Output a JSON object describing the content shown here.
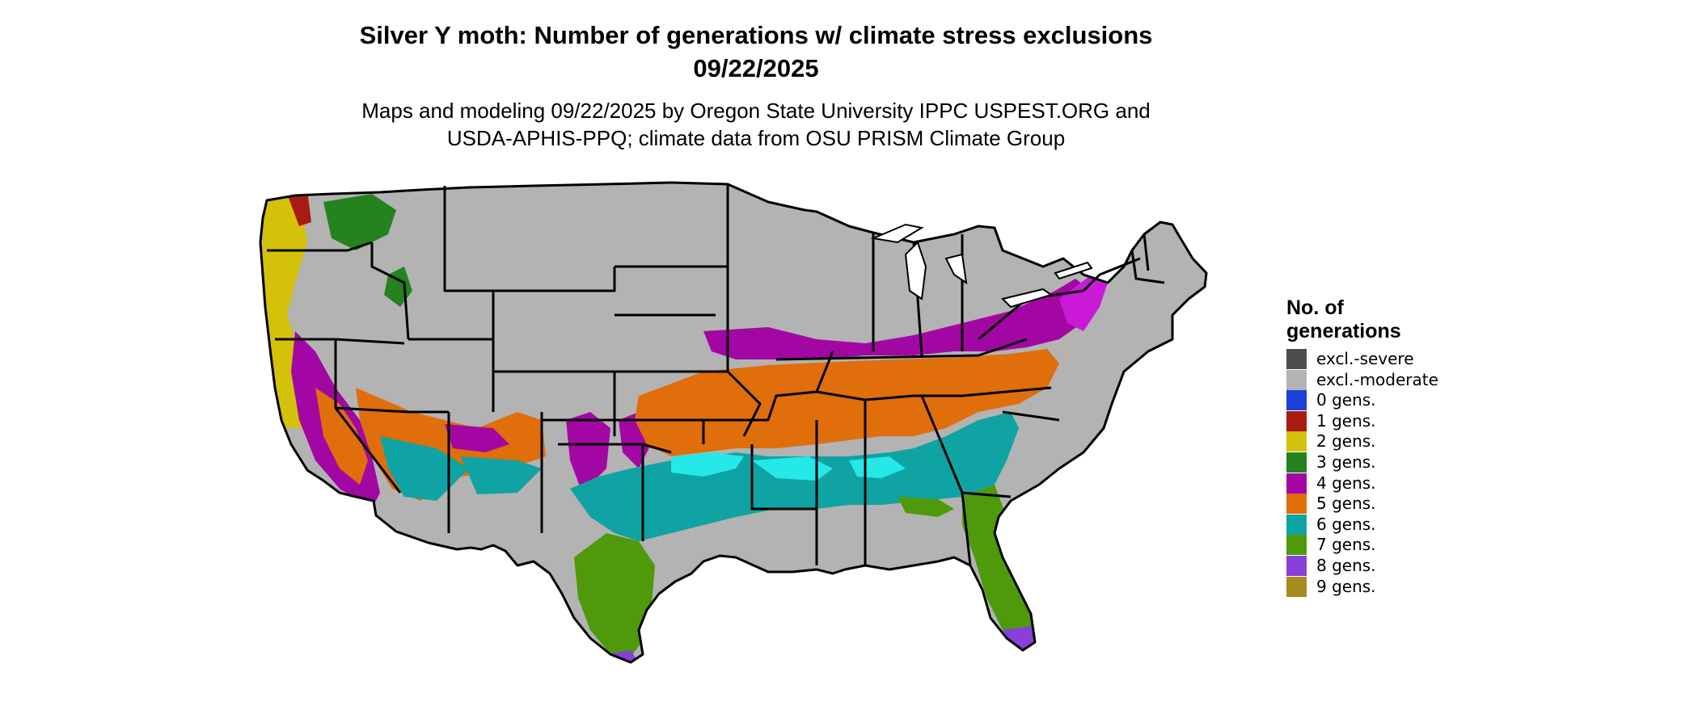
{
  "title": {
    "line1": "Silver Y moth: Number of generations w/ climate stress exclusions",
    "line2": "09/22/2025"
  },
  "subtitle": {
    "line1": "Maps and modeling 09/22/2025 by Oregon State University IPPC USPEST.ORG and",
    "line2": "USDA-APHIS-PPQ; climate data from OSU PRISM Climate Group"
  },
  "legend": {
    "title_line1": "No. of",
    "title_line2": "generations",
    "items": [
      {
        "label": "excl.-severe",
        "color": "#4d4d4d"
      },
      {
        "label": "excl.-moderate",
        "color": "#b3b3b3"
      },
      {
        "label": "0 gens.",
        "color": "#1c3fd8"
      },
      {
        "label": "1 gens.",
        "color": "#a81c10"
      },
      {
        "label": "2 gens.",
        "color": "#d4c10a"
      },
      {
        "label": "3 gens.",
        "color": "#24831e"
      },
      {
        "label": "4 gens.",
        "color": "#a307a3"
      },
      {
        "label": "5 gens.",
        "color": "#e06e0a"
      },
      {
        "label": "6 gens.",
        "color": "#0fa3a3"
      },
      {
        "label": "7 gens.",
        "color": "#4e9a0a"
      },
      {
        "label": "8 gens.",
        "color": "#8a3fd8"
      },
      {
        "label": "9 gens.",
        "color": "#a88b20"
      }
    ]
  }
}
